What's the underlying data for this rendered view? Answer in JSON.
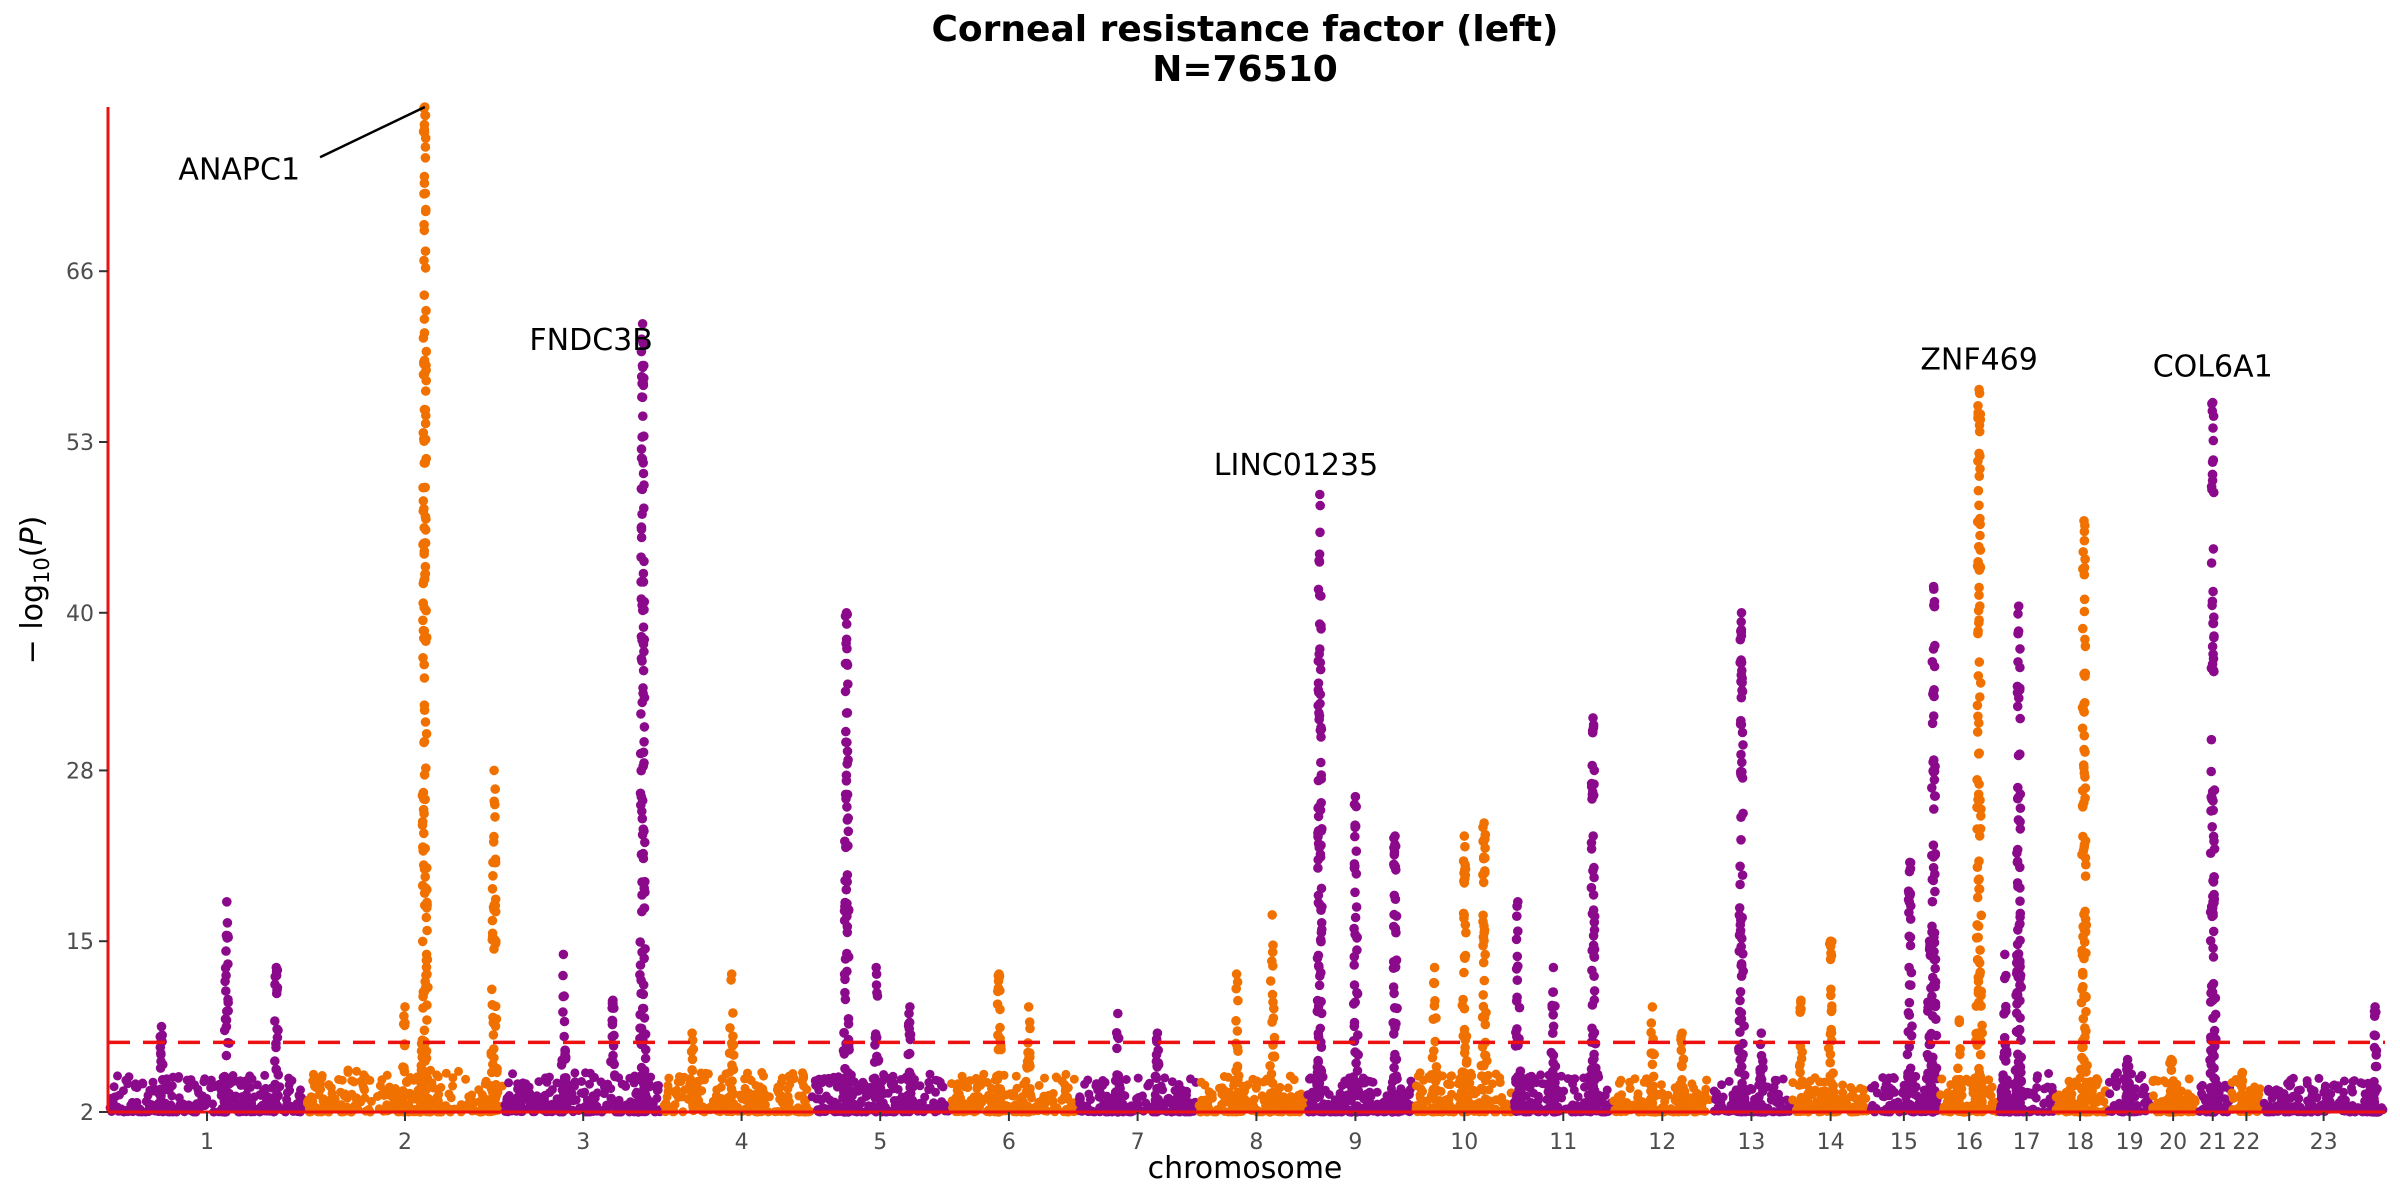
{
  "chart_data": {
    "type": "scatter",
    "subtype": "manhattan",
    "title": "Corneal resistance factor (left)",
    "subtitle": "N=76510",
    "xlabel": "chromosome",
    "ylabel": "− log10(P)",
    "ylabel_parts": {
      "prefix": "− log",
      "subscript": "10",
      "suffix": "(",
      "italic": "P",
      "close": ")"
    },
    "yticks": [
      2,
      15,
      28,
      40,
      53,
      66
    ],
    "ylim": [
      2,
      78.5
    ],
    "significance_threshold": 7.3,
    "colors": {
      "odd": "#8b0a8b",
      "even": "#f07000",
      "threshold": "#ee1111",
      "axis": "#ee1111"
    },
    "chromosomes": [
      {
        "chr": "1",
        "start": 0.0,
        "end": 1.0,
        "tick": 0.5,
        "baseline": 3.2,
        "color": "odd",
        "peaks": [
          {
            "x": 0.6,
            "y": 18.0
          },
          {
            "x": 0.85,
            "y": 13.0
          },
          {
            "x": 0.27,
            "y": 8.5
          }
        ]
      },
      {
        "chr": "2",
        "start": 1.0,
        "end": 2.0,
        "tick": 1.5,
        "baseline": 3.8,
        "color": "even",
        "peaks": [
          {
            "x": 1.6,
            "y": 78.5
          },
          {
            "x": 1.5,
            "y": 10.0
          },
          {
            "x": 1.95,
            "y": 28.0
          }
        ]
      },
      {
        "chr": "3",
        "start": 2.0,
        "end": 2.8,
        "tick": 2.4,
        "baseline": 3.4,
        "color": "odd",
        "peaks": [
          {
            "x": 2.7,
            "y": 62.0
          },
          {
            "x": 2.3,
            "y": 14.0
          },
          {
            "x": 2.55,
            "y": 10.5
          }
        ]
      },
      {
        "chr": "4",
        "start": 2.8,
        "end": 3.55,
        "tick": 3.2,
        "baseline": 3.6,
        "color": "even",
        "peaks": [
          {
            "x": 3.15,
            "y": 12.5
          },
          {
            "x": 2.95,
            "y": 8.0
          }
        ]
      },
      {
        "chr": "5",
        "start": 3.55,
        "end": 4.25,
        "tick": 3.9,
        "baseline": 3.3,
        "color": "odd",
        "peaks": [
          {
            "x": 3.73,
            "y": 40.0
          },
          {
            "x": 3.88,
            "y": 13.0
          },
          {
            "x": 4.05,
            "y": 10.0
          }
        ]
      },
      {
        "chr": "6",
        "start": 4.25,
        "end": 4.9,
        "tick": 4.55,
        "baseline": 3.3,
        "color": "even",
        "peaks": [
          {
            "x": 4.5,
            "y": 12.5
          },
          {
            "x": 4.65,
            "y": 10.0
          }
        ]
      },
      {
        "chr": "7",
        "start": 4.9,
        "end": 5.5,
        "tick": 5.2,
        "baseline": 3.0,
        "color": "odd",
        "peaks": [
          {
            "x": 5.1,
            "y": 9.5
          },
          {
            "x": 5.3,
            "y": 8.0
          }
        ]
      },
      {
        "chr": "8",
        "start": 5.5,
        "end": 6.05,
        "tick": 5.8,
        "baseline": 3.2,
        "color": "even",
        "peaks": [
          {
            "x": 5.7,
            "y": 12.5
          },
          {
            "x": 5.88,
            "y": 17.0
          }
        ]
      },
      {
        "chr": "9",
        "start": 6.05,
        "end": 6.6,
        "tick": 6.3,
        "baseline": 3.0,
        "color": "odd",
        "peaks": [
          {
            "x": 6.12,
            "y": 49.0
          },
          {
            "x": 6.3,
            "y": 26.0
          },
          {
            "x": 6.5,
            "y": 23.0
          }
        ]
      },
      {
        "chr": "10",
        "start": 6.6,
        "end": 7.1,
        "tick": 6.85,
        "baseline": 3.4,
        "color": "even",
        "peaks": [
          {
            "x": 6.85,
            "y": 23.0
          },
          {
            "x": 6.95,
            "y": 24.0
          },
          {
            "x": 6.7,
            "y": 13.0
          }
        ]
      },
      {
        "chr": "11",
        "start": 7.1,
        "end": 7.6,
        "tick": 7.35,
        "baseline": 3.3,
        "color": "odd",
        "peaks": [
          {
            "x": 7.12,
            "y": 18.0
          },
          {
            "x": 7.3,
            "y": 13.0
          },
          {
            "x": 7.5,
            "y": 32.0
          }
        ]
      },
      {
        "chr": "12",
        "start": 7.6,
        "end": 8.1,
        "tick": 7.85,
        "baseline": 3.0,
        "color": "even",
        "peaks": [
          {
            "x": 7.8,
            "y": 10.0
          },
          {
            "x": 7.95,
            "y": 8.0
          }
        ]
      },
      {
        "chr": "13",
        "start": 8.1,
        "end": 8.5,
        "tick": 8.3,
        "baseline": 3.0,
        "color": "odd",
        "peaks": [
          {
            "x": 8.25,
            "y": 40.0
          },
          {
            "x": 8.35,
            "y": 8.0
          }
        ]
      },
      {
        "chr": "14",
        "start": 8.5,
        "end": 8.9,
        "tick": 8.7,
        "baseline": 3.0,
        "color": "even",
        "peaks": [
          {
            "x": 8.7,
            "y": 15.0
          },
          {
            "x": 8.55,
            "y": 10.5
          }
        ]
      },
      {
        "chr": "15",
        "start": 8.9,
        "end": 9.25,
        "tick": 9.07,
        "baseline": 3.2,
        "color": "odd",
        "peaks": [
          {
            "x": 9.1,
            "y": 21.0
          },
          {
            "x": 9.2,
            "y": 15.0
          },
          {
            "x": 9.22,
            "y": 42.0
          }
        ]
      },
      {
        "chr": "16",
        "start": 9.25,
        "end": 9.55,
        "tick": 9.4,
        "baseline": 3.0,
        "color": "even",
        "peaks": [
          {
            "x": 9.45,
            "y": 57.0
          },
          {
            "x": 9.35,
            "y": 9.0
          }
        ]
      },
      {
        "chr": "17",
        "start": 9.55,
        "end": 9.83,
        "tick": 9.69,
        "baseline": 3.5,
        "color": "odd",
        "peaks": [
          {
            "x": 9.65,
            "y": 40.5
          },
          {
            "x": 9.58,
            "y": 14.0
          }
        ]
      },
      {
        "chr": "18",
        "start": 9.83,
        "end": 10.1,
        "tick": 9.96,
        "baseline": 3.0,
        "color": "even",
        "peaks": [
          {
            "x": 9.98,
            "y": 47.0
          }
        ]
      },
      {
        "chr": "19",
        "start": 10.1,
        "end": 10.32,
        "tick": 10.21,
        "baseline": 3.5,
        "color": "odd",
        "peaks": [
          {
            "x": 10.2,
            "y": 6.0
          }
        ]
      },
      {
        "chr": "20",
        "start": 10.32,
        "end": 10.55,
        "tick": 10.43,
        "baseline": 3.3,
        "color": "even",
        "peaks": [
          {
            "x": 10.42,
            "y": 6.0
          }
        ]
      },
      {
        "chr": "21",
        "start": 10.55,
        "end": 10.72,
        "tick": 10.63,
        "baseline": 3.0,
        "color": "odd",
        "peaks": [
          {
            "x": 10.63,
            "y": 56.0
          }
        ]
      },
      {
        "chr": "22",
        "start": 10.72,
        "end": 10.88,
        "tick": 10.8,
        "baseline": 3.0,
        "color": "even",
        "peaks": [
          {
            "x": 10.78,
            "y": 5.0
          }
        ]
      },
      {
        "chr": "23",
        "start": 10.88,
        "end": 11.5,
        "tick": 11.19,
        "baseline": 3.0,
        "color": "odd",
        "peaks": [
          {
            "x": 11.45,
            "y": 10.0
          }
        ]
      }
    ],
    "annotations": [
      {
        "label": "ANAPC1",
        "x": 1.6,
        "y": 78.5,
        "label_x": 0.97,
        "label_y": 73.0,
        "leader": true
      },
      {
        "label": "FNDC3B",
        "x": 2.7,
        "y": 62.0,
        "label_x": 2.44,
        "label_y": 60.0,
        "leader": false
      },
      {
        "label": "LINC01235",
        "x": 6.12,
        "y": 49.0,
        "label_x": 6.0,
        "label_y": 50.5,
        "leader": false
      },
      {
        "label": "ZNF469",
        "x": 9.45,
        "y": 57.0,
        "label_x": 9.45,
        "label_y": 58.5,
        "leader": false
      },
      {
        "label": "COL6A1",
        "x": 10.63,
        "y": 56.0,
        "label_x": 10.63,
        "label_y": 58.0,
        "leader": false
      }
    ]
  }
}
